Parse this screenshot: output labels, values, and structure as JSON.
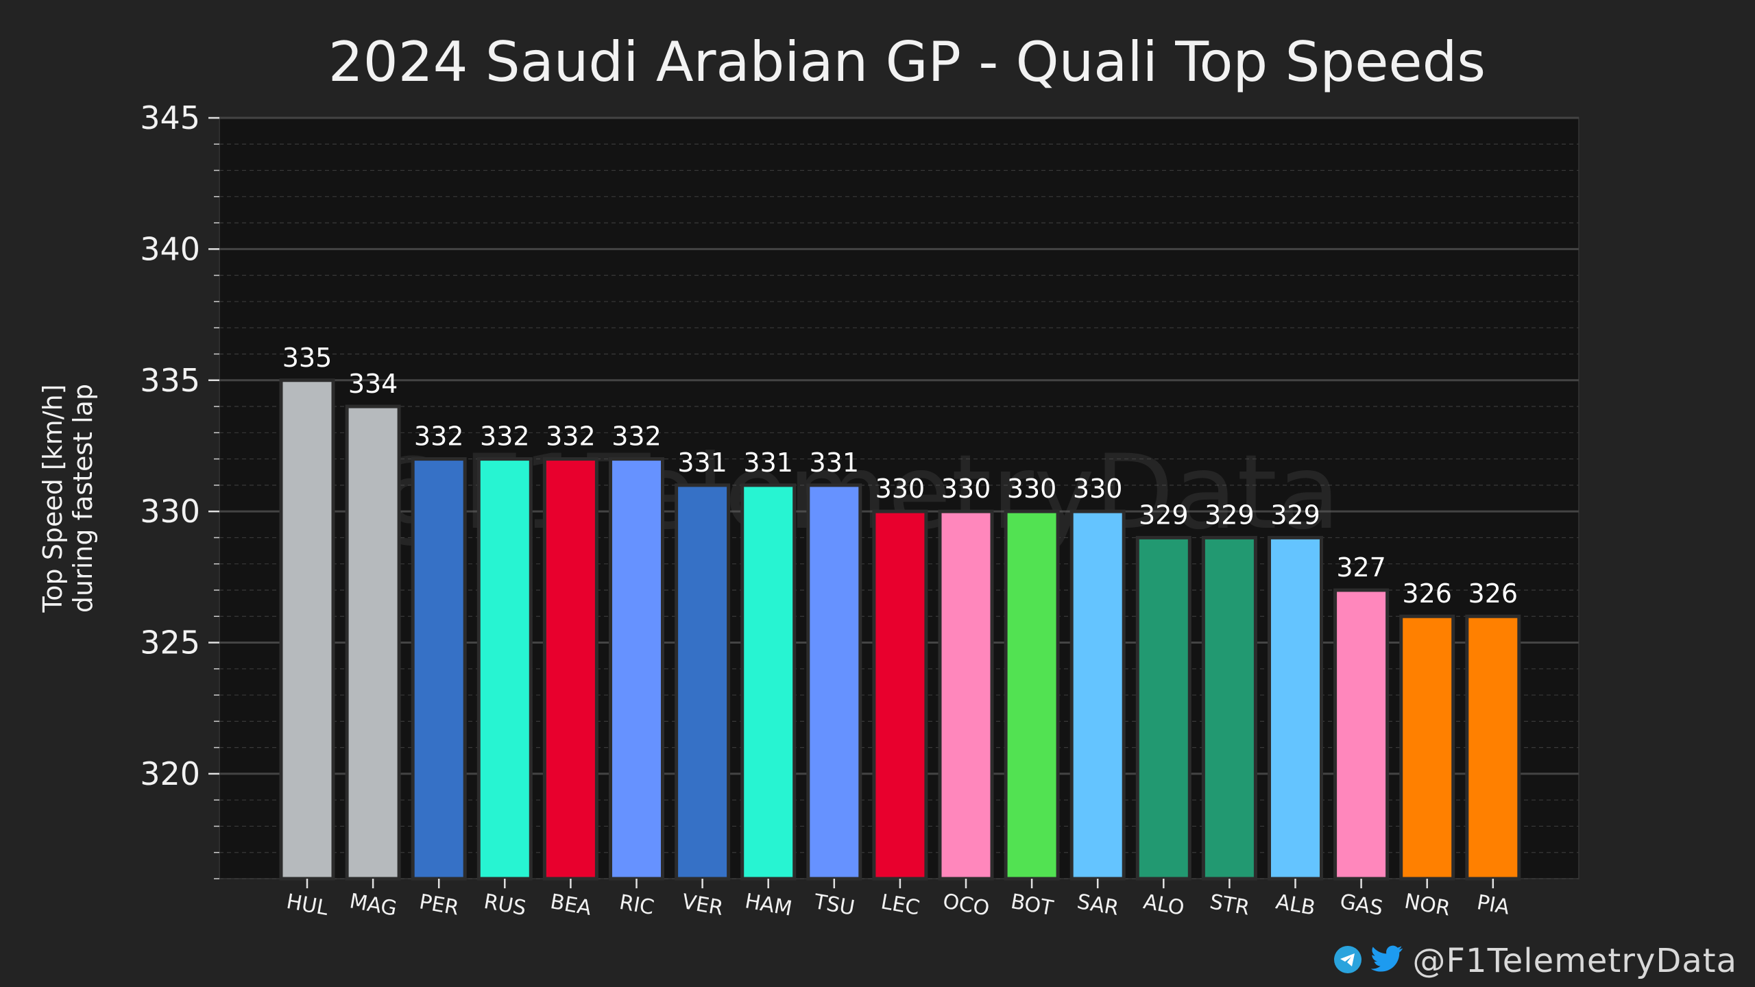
{
  "chart_data": {
    "type": "bar",
    "title": "2024 Saudi Arabian GP - Quali Top Speeds",
    "xlabel": "",
    "ylabel": "Top Speed [km/h]",
    "ylabel_line2": "during fastest lap",
    "categories": [
      "HUL",
      "MAG",
      "PER",
      "RUS",
      "BEA",
      "RIC",
      "VER",
      "HAM",
      "TSU",
      "LEC",
      "OCO",
      "BOT",
      "SAR",
      "ALO",
      "STR",
      "ALB",
      "GAS",
      "NOR",
      "PIA"
    ],
    "values": [
      335,
      334,
      332,
      332,
      332,
      332,
      331,
      331,
      331,
      330,
      330,
      330,
      330,
      329,
      329,
      329,
      327,
      326,
      326
    ],
    "bar_colors": [
      "#B6BABD",
      "#B6BABD",
      "#3671C6",
      "#27F4D2",
      "#E8002D",
      "#6692FF",
      "#3671C6",
      "#27F4D2",
      "#6692FF",
      "#E8002D",
      "#FF87BC",
      "#52E252",
      "#64C4FF",
      "#229971",
      "#229971",
      "#64C4FF",
      "#FF87BC",
      "#FF8000",
      "#FF8000"
    ],
    "ylim": [
      316,
      345
    ],
    "yticks": [
      320,
      325,
      330,
      335,
      340,
      345
    ],
    "grid": true,
    "watermark": "@F1TelemetryData"
  },
  "footer": {
    "handle": "@F1TelemetryData",
    "icons": [
      "telegram-icon",
      "twitter-icon"
    ],
    "telegram_color": "#2AA3DD",
    "twitter_color": "#1D9BF0"
  },
  "colors": {
    "background": "#232323",
    "plot_background": "#131313",
    "grid_major": "#444444",
    "grid_minor": "#3a3a3a"
  }
}
